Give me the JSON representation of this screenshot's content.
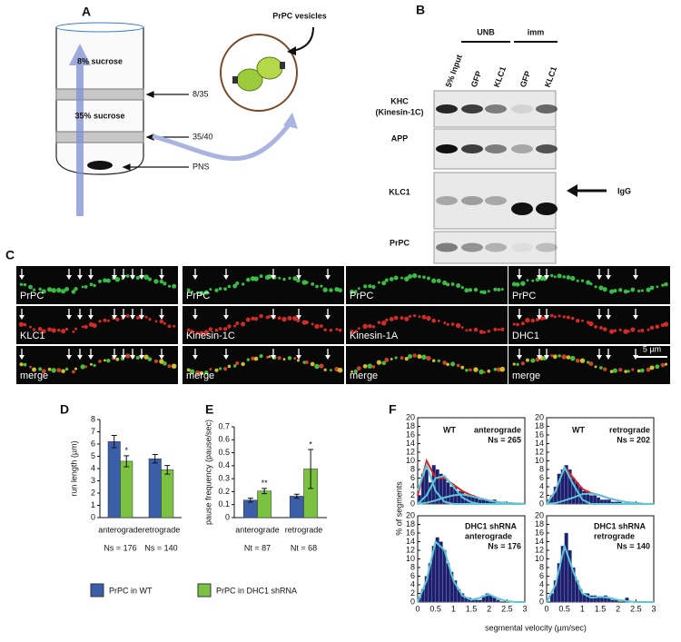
{
  "panel_a": {
    "letter": "A",
    "layers": [
      "8% sucrose",
      "35% sucrose"
    ],
    "interfaces": [
      "8/35",
      "35/40",
      "PNS"
    ],
    "vesicle_label": "PrPC vesicles"
  },
  "panel_b": {
    "letter": "B",
    "groups": [
      "UNB",
      "imm"
    ],
    "lanes": [
      "5% Input",
      "GFP",
      "KLC1",
      "GFP",
      "KLC1"
    ],
    "row_labels": [
      "KHC",
      "(Kinesin-1C)",
      "APP",
      "KLC1",
      "PrPC"
    ],
    "igg": "IgG"
  },
  "panel_c": {
    "letter": "C",
    "columns": [
      {
        "labels": [
          "PrPC",
          "KLC1",
          "merge"
        ]
      },
      {
        "labels": [
          "PrPC",
          "Kinesin-1C",
          "merge"
        ]
      },
      {
        "labels": [
          "PrPC",
          "Kinesin-1A",
          "merge"
        ]
      },
      {
        "labels": [
          "PrPC",
          "DHC1",
          "merge"
        ]
      }
    ],
    "scale": "5 µm"
  },
  "chart_data": [
    {
      "type": "bar",
      "letter": "D",
      "y_label": "run length (µm)",
      "categories": [
        "anterograde",
        "retrograde"
      ],
      "category_notes": [
        "Ns = 176",
        "Ns = 140"
      ],
      "series": [
        {
          "name": "PrPC in WT",
          "color": "#3a5fa8",
          "values": [
            6.2,
            4.8
          ],
          "errors": [
            0.5,
            0.35
          ]
        },
        {
          "name": "PrPC in DHC1 shRNA",
          "color": "#7cc242",
          "values": [
            4.6,
            3.9
          ],
          "errors": [
            0.45,
            0.35
          ],
          "significance": [
            "*",
            null
          ]
        }
      ],
      "ylim": [
        0,
        8
      ],
      "yticks": [
        0,
        1,
        2,
        3,
        4,
        5,
        6,
        7,
        8
      ]
    },
    {
      "type": "bar",
      "letter": "E",
      "y_label": "pause frequency (pause/sec)",
      "categories": [
        "anterograde",
        "retrograde"
      ],
      "category_notes": [
        "Nt = 87",
        "Nt = 68"
      ],
      "series": [
        {
          "color": "#3a5fa8",
          "values": [
            0.135,
            0.165
          ],
          "errors": [
            0.015,
            0.015
          ]
        },
        {
          "color": "#7cc242",
          "values": [
            0.205,
            0.375
          ],
          "errors": [
            0.02,
            0.15
          ],
          "significance": [
            "**",
            "*"
          ]
        }
      ],
      "ylim": [
        0,
        0.7
      ],
      "yticks": [
        0,
        0.1,
        0.2,
        0.3,
        0.4,
        0.5,
        0.6,
        0.7
      ]
    },
    {
      "type": "histogram",
      "letter": "F",
      "y_label": "% of segments",
      "x_label": "segmental velocity (µm/sec)",
      "xlim": [
        0,
        3
      ],
      "ylim": [
        0,
        20
      ],
      "xticks": [
        0,
        0.5,
        1,
        1.5,
        2,
        2.5,
        3
      ],
      "yticks": [
        0,
        2,
        4,
        6,
        8,
        10,
        12,
        14,
        16,
        18,
        20
      ],
      "bar_color": "#1f1f70",
      "bins": [
        0,
        0.1,
        0.2,
        0.3,
        0.4,
        0.5,
        0.6,
        0.7,
        0.8,
        0.9,
        1,
        1.1,
        1.2,
        1.3,
        1.4,
        1.5,
        1.6,
        1.7,
        1.8,
        1.9,
        2,
        2.1,
        2.2,
        2.3,
        2.4,
        2.5,
        2.6,
        2.7,
        2.8,
        2.9,
        3
      ],
      "curve_x": [
        0,
        0.25,
        0.5,
        0.75,
        1,
        1.25,
        1.5,
        1.75,
        2,
        2.25,
        2.5,
        2.75,
        3
      ],
      "panels": [
        {
          "label": "WT",
          "direction": "anterograde",
          "n": "Ns = 265",
          "counts": [
            2,
            7,
            8,
            5,
            9,
            8,
            7,
            6,
            5,
            4,
            4,
            3,
            3,
            2,
            2,
            2,
            1.5,
            1,
            1,
            1,
            0.5,
            1,
            0.5,
            0,
            0.5,
            0,
            0,
            0,
            0,
            0
          ],
          "curves": [
            {
              "color": "#e02020",
              "values": [
                2,
                10,
                6,
                6,
                4.5,
                3,
                2,
                1.3,
                0.8,
                0.4,
                0.2,
                0.1,
                0
              ]
            },
            {
              "color": "#5bc8d8",
              "values": [
                3,
                9,
                3,
                0.5,
                0,
                0,
                0,
                0,
                0,
                0,
                0,
                0,
                0
              ]
            },
            {
              "color": "#5bc8d8",
              "values": [
                0,
                2,
                6,
                6.5,
                4,
                1.5,
                0.4,
                0,
                0,
                0,
                0,
                0,
                0
              ]
            },
            {
              "color": "#5bc8d8",
              "values": [
                0,
                0.3,
                0.8,
                1.5,
                2,
                2.2,
                1.8,
                1.3,
                0.8,
                0.4,
                0.2,
                0.1,
                0
              ]
            }
          ]
        },
        {
          "label": "WT",
          "direction": "retrograde",
          "n": "Ns = 202",
          "counts": [
            1,
            2,
            4,
            7,
            8,
            9,
            8,
            6,
            5,
            4,
            3,
            3,
            2,
            2,
            1.5,
            1,
            1,
            1,
            0.5,
            0.5,
            0.5,
            0,
            0,
            0,
            0,
            0,
            0,
            0,
            0,
            0
          ],
          "curves": [
            {
              "color": "#e02020",
              "values": [
                0,
                3,
                8.5,
                6,
                3.5,
                2.5,
                2,
                1.3,
                0.8,
                0.4,
                0.2,
                0,
                0
              ]
            },
            {
              "color": "#5bc8d8",
              "values": [
                0,
                3,
                8.5,
                4.5,
                1,
                0,
                0,
                0,
                0,
                0,
                0,
                0,
                0
              ]
            },
            {
              "color": "#5bc8d8",
              "values": [
                0,
                0.2,
                0.8,
                1.5,
                2.3,
                2.4,
                2,
                1.3,
                0.8,
                0.4,
                0.2,
                0,
                0
              ]
            }
          ]
        },
        {
          "label": "DHC1 shRNA",
          "direction": "anterograde",
          "n": "Ns = 176",
          "counts": [
            1,
            3,
            6,
            9,
            13,
            15,
            14,
            12,
            9,
            7,
            5,
            3,
            2,
            1,
            1,
            0.5,
            0.5,
            0.5,
            1.5,
            2,
            1.5,
            1,
            0.5,
            0,
            0,
            0,
            0,
            0,
            0,
            0
          ],
          "curves": [
            {
              "color": "#5bc8d8",
              "values": [
                0,
                5,
                14,
                12,
                5,
                1.5,
                0.5,
                1,
                1.8,
                0.8,
                0.2,
                0,
                0
              ]
            }
          ]
        },
        {
          "label": "DHC1 shRNA",
          "direction": "retrograde",
          "n": "Ns = 140",
          "counts": [
            0,
            2,
            5,
            9,
            13,
            16,
            12,
            8,
            5,
            3,
            2,
            2,
            1.5,
            1.5,
            1,
            1,
            1.5,
            1,
            0.5,
            0.5,
            0,
            0,
            1,
            0,
            0,
            0,
            0,
            0,
            0,
            0
          ],
          "curves": [
            {
              "color": "#5bc8d8",
              "values": [
                0,
                4,
                13,
                7,
                2,
                1,
                1.2,
                1,
                0.5,
                0.2,
                0,
                0,
                0
              ]
            }
          ]
        }
      ]
    }
  ]
}
